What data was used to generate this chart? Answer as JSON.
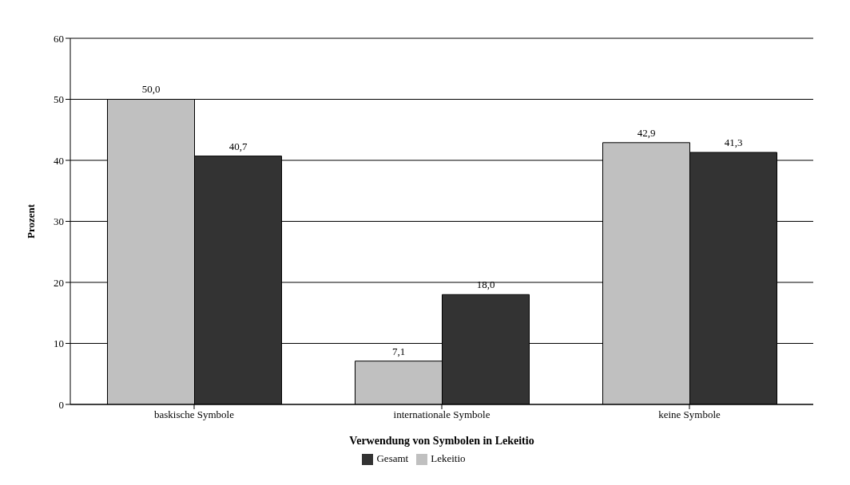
{
  "chart_data": {
    "type": "bar",
    "xlabel": "Verwendung von Symbolen in Lekeitio",
    "ylabel": "Prozent",
    "categories": [
      "baskische Symbole",
      "internationale Symbole",
      "keine Symbole"
    ],
    "series": [
      {
        "name": "Lekeitio",
        "color": "#c0c0c0",
        "values": [
          50.0,
          7.1,
          42.9
        ],
        "value_labels": [
          "50,0",
          "7,1",
          "42,9"
        ]
      },
      {
        "name": "Gesamt",
        "color": "#333333",
        "values": [
          40.7,
          18.0,
          41.3
        ],
        "value_labels": [
          "40,7",
          "18,0",
          "41,3"
        ]
      }
    ],
    "ylim": [
      0,
      60
    ],
    "yticks": [
      0,
      10,
      20,
      30,
      40,
      50,
      60
    ],
    "grid": "y",
    "legend": "bottom"
  }
}
